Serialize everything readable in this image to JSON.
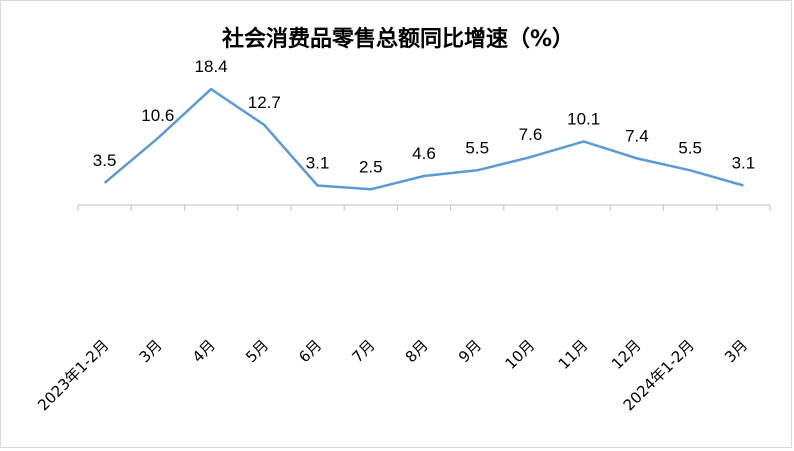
{
  "chart_data": {
    "type": "line",
    "title": "社会消费品零售总额同比增速（%）",
    "xlabel": "",
    "ylabel": "",
    "categories": [
      "2023年1-2月",
      "3月",
      "4月",
      "5月",
      "6月",
      "7月",
      "8月",
      "9月",
      "10月",
      "11月",
      "12月",
      "2024年1-2月",
      "3月"
    ],
    "series": [
      {
        "values": [
          3.5,
          10.6,
          18.4,
          12.7,
          3.1,
          2.5,
          4.6,
          5.5,
          7.6,
          10.1,
          7.4,
          5.5,
          3.1
        ]
      }
    ],
    "data_labels": [
      "3.5",
      "10.6",
      "18.4",
      "12.7",
      "3.1",
      "2.5",
      "4.6",
      "5.5",
      "7.6",
      "10.1",
      "7.4",
      "5.5",
      "3.1"
    ],
    "ylim": [
      0,
      20
    ],
    "grid": false,
    "legend": "none",
    "colors": {
      "line": "#5b9bd5",
      "axis": "#bfbfbf",
      "text": "#000000"
    }
  }
}
